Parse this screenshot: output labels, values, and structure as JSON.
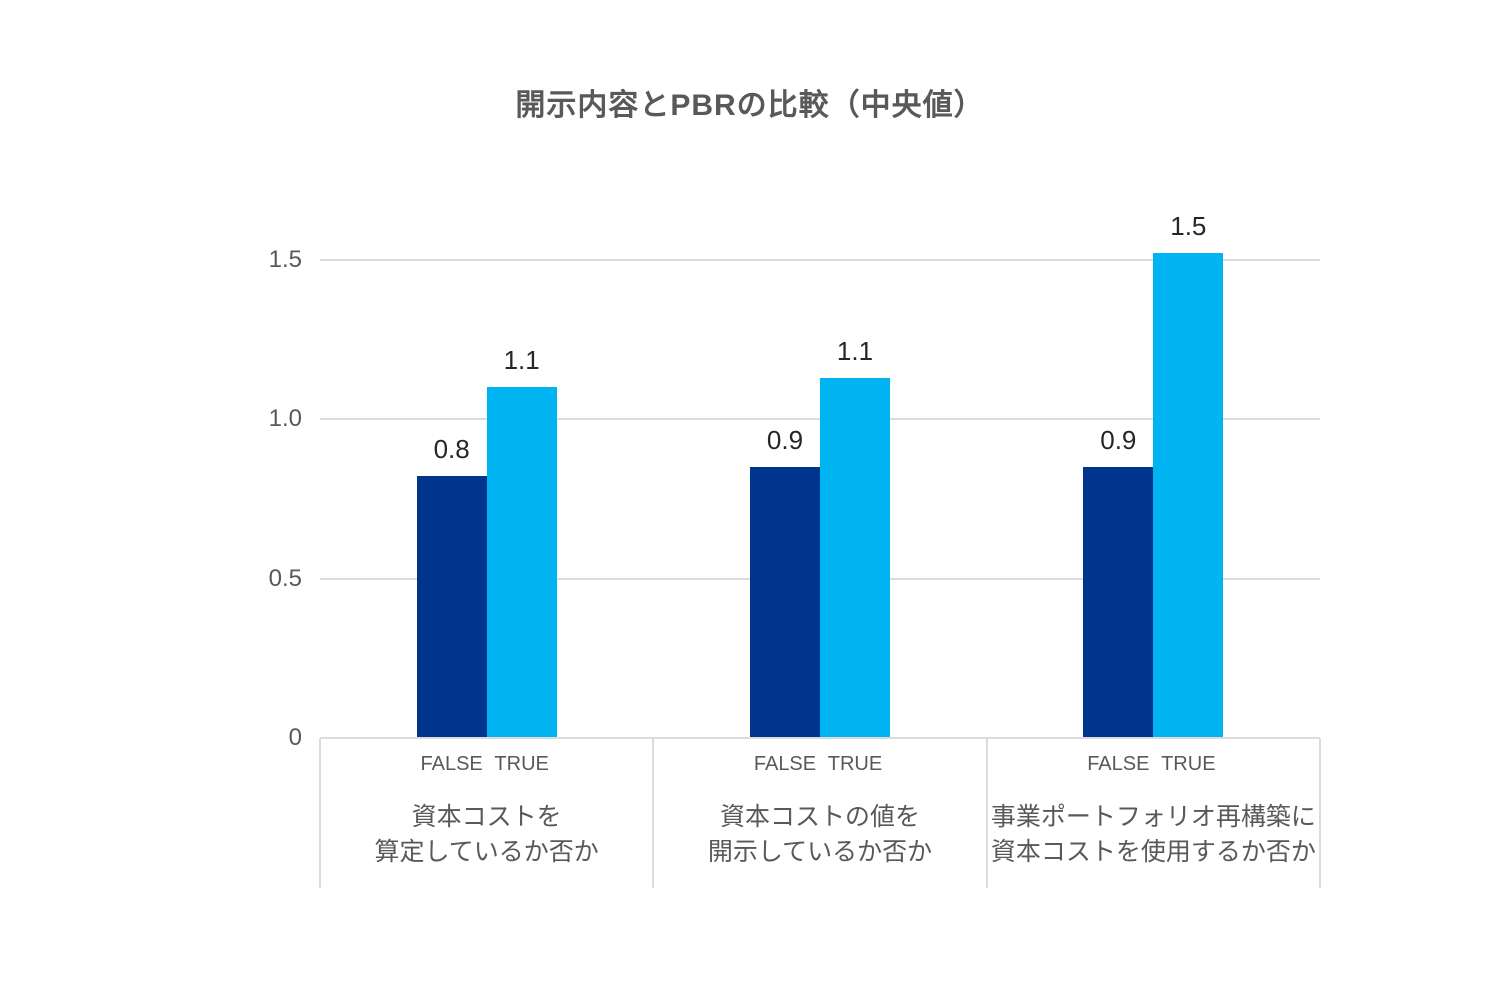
{
  "title": "開示内容とPBRの比較（中央値）",
  "colors": {
    "false_bar": "#00358E",
    "true_bar": "#00B4F1",
    "grid": "#DCDCDC",
    "axis_text": "#595959",
    "value_text": "#262626",
    "title_text": "#595959",
    "background": "#FFFFFF"
  },
  "chart_data": {
    "type": "bar",
    "title": "開示内容とPBRの比較（中央値）",
    "xlabel": "",
    "ylabel": "",
    "ylim": [
      0,
      1.6
    ],
    "grid": "horizontal",
    "legend_position": "none",
    "series_labels": [
      "FALSE",
      "TRUE"
    ],
    "yticks": [
      {
        "value": 0,
        "label": "0"
      },
      {
        "value": 0.5,
        "label": "0.5"
      },
      {
        "value": 1.0,
        "label": "1.0"
      },
      {
        "value": 1.5,
        "label": "1.5"
      }
    ],
    "groups": [
      {
        "category_lines": [
          "資本コストを",
          "算定しているか否か"
        ],
        "bars": [
          {
            "series": "FALSE",
            "value": 0.82,
            "label": "0.8"
          },
          {
            "series": "TRUE",
            "value": 1.1,
            "label": "1.1"
          }
        ]
      },
      {
        "category_lines": [
          "資本コストの値を",
          "開示しているか否か"
        ],
        "bars": [
          {
            "series": "FALSE",
            "value": 0.85,
            "label": "0.9"
          },
          {
            "series": "TRUE",
            "value": 1.13,
            "label": "1.1"
          }
        ]
      },
      {
        "category_lines": [
          "事業ポートフォリオ再構築に",
          "資本コストを使用するか否か"
        ],
        "bars": [
          {
            "series": "FALSE",
            "value": 0.85,
            "label": "0.9"
          },
          {
            "series": "TRUE",
            "value": 1.52,
            "label": "1.5"
          }
        ]
      }
    ]
  }
}
